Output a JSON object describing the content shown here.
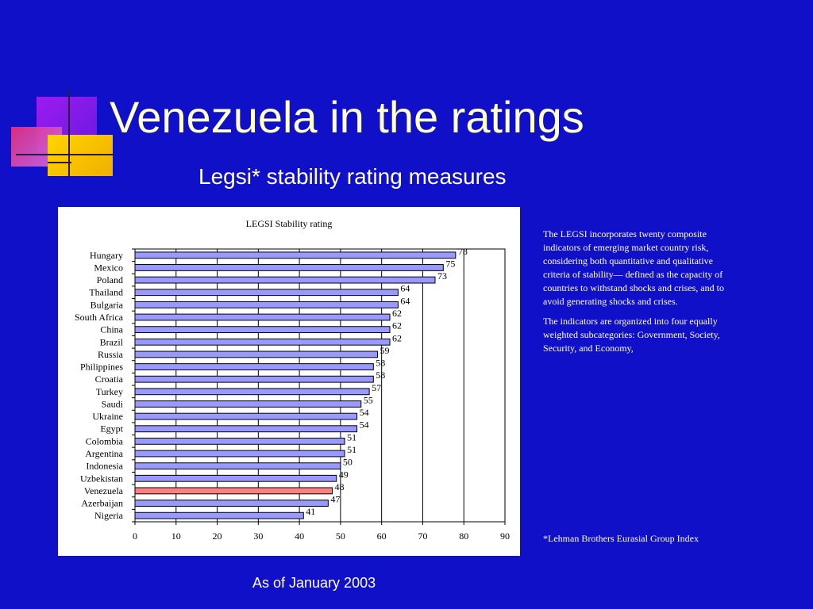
{
  "slide": {
    "title": "Venezuela in the ratings",
    "subtitle": "Legsi* stability rating measures",
    "description_p1": "The LEGSI incorporates twenty composite indicators of emerging market country risk, considering both quantitative and qualitative criteria of stability— defined as the capacity of countries to withstand shocks and crises, and to avoid generating shocks and crises.",
    "description_p2": "The indicators are organized into four equally weighted subcategories: Government, Society, Security, and Economy,",
    "footnote": "*Lehman Brothers Eurasial Group Index",
    "as_of": "As of January 2003"
  },
  "colors": {
    "background": "#1010c8",
    "title": "#ffffcc",
    "bar_fill": "#9999ff",
    "highlight_fill": "#ff8080"
  },
  "chart_data": {
    "type": "bar",
    "orientation": "horizontal",
    "title": "LEGSI Stability rating",
    "categories": [
      "Hungary",
      "Mexico",
      "Poland",
      "Thailand",
      "Bulgaria",
      "South Africa",
      "China",
      "Brazil",
      "Russia",
      "Philippines",
      "Croatia",
      "Turkey",
      "Saudi",
      "Ukraine",
      "Egypt",
      "Colombia",
      "Argentina",
      "Indonesia",
      "Uzbekistan",
      "Venezuela",
      "Azerbaijan",
      "Nigeria"
    ],
    "values": [
      78,
      75,
      73,
      64,
      64,
      62,
      62,
      62,
      59,
      58,
      58,
      57,
      55,
      54,
      54,
      51,
      51,
      50,
      49,
      48,
      47,
      41
    ],
    "highlight": "Venezuela",
    "xlim": [
      0,
      90
    ],
    "xticks": [
      0,
      10,
      20,
      30,
      40,
      50,
      60,
      70,
      80,
      90
    ],
    "grid": "vertical",
    "legend": "none"
  }
}
